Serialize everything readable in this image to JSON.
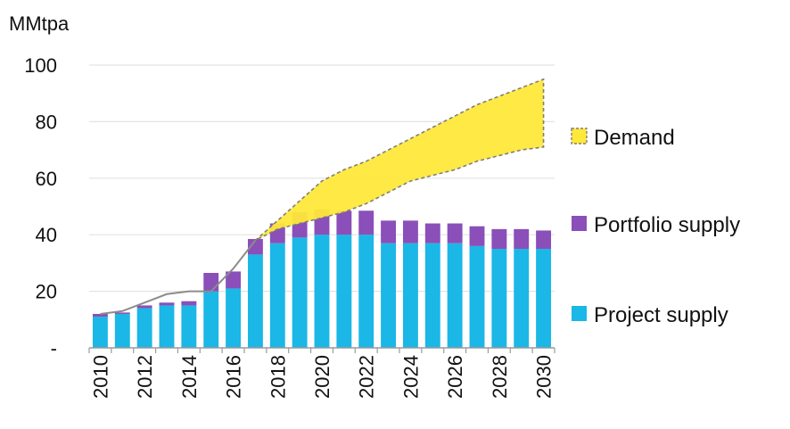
{
  "chart_data": {
    "type": "bar",
    "stacked": true,
    "unit_label": "MMtpa",
    "categories": [
      "2010",
      "2011",
      "2012",
      "2013",
      "2014",
      "2015",
      "2016",
      "2017",
      "2018",
      "2019",
      "2020",
      "2021",
      "2022",
      "2023",
      "2024",
      "2025",
      "2026",
      "2027",
      "2028",
      "2029",
      "2030"
    ],
    "x_tick_labels": [
      "2010",
      "2012",
      "2014",
      "2016",
      "2018",
      "2020",
      "2022",
      "2024",
      "2026",
      "2028",
      "2030"
    ],
    "ylim": [
      0,
      100
    ],
    "y_ticks": [
      0,
      20,
      40,
      60,
      80,
      100
    ],
    "y_tick_labels": [
      "-",
      "20",
      "40",
      "60",
      "80",
      "100"
    ],
    "grid": true,
    "legend_position": "right",
    "series": [
      {
        "name": "Project supply",
        "color": "#1BB7E6",
        "values": [
          11,
          12,
          14,
          15,
          15,
          20,
          21,
          33,
          37,
          39,
          40,
          40,
          40,
          37,
          37,
          37,
          37,
          36,
          35,
          35,
          35
        ]
      },
      {
        "name": "Portfolio supply",
        "color": "#8A4FB8",
        "values": [
          1,
          0.5,
          1,
          1,
          1.5,
          6.5,
          6,
          5.5,
          7,
          9,
          9,
          8.5,
          8.5,
          8,
          8,
          7,
          7,
          7,
          7,
          7,
          6.5
        ]
      }
    ],
    "demand": {
      "name": "Demand",
      "color": "#FFE83A",
      "low": [
        12,
        13,
        16,
        19,
        20,
        20,
        28,
        38,
        42,
        44,
        46,
        48,
        51,
        55,
        59,
        61,
        63,
        66,
        68,
        70,
        71
      ],
      "high": [
        12,
        13,
        16,
        19,
        20,
        20,
        28,
        38,
        45,
        52,
        59,
        63,
        66,
        70,
        74,
        78,
        82,
        86,
        89,
        92,
        95
      ]
    }
  }
}
